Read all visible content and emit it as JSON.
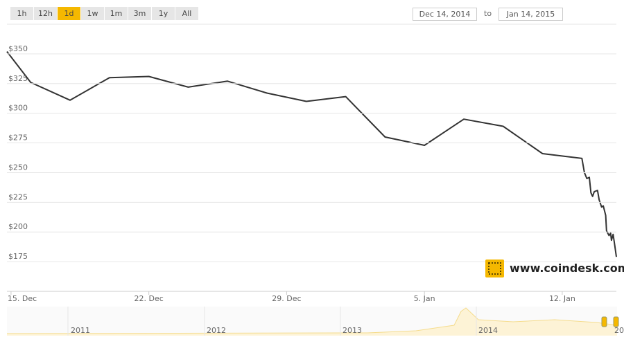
{
  "range_buttons": [
    "1h",
    "12h",
    "1d",
    "1w",
    "1m",
    "3m",
    "1y",
    "All"
  ],
  "selected_range": 2,
  "date_from": "Dec 14, 2014",
  "date_separator": "to",
  "date_to": "Jan 14, 2015",
  "watermark": "www.coindesk.com",
  "navigator": {
    "labels": [
      "2011",
      "2012",
      "2013",
      "2014",
      "20"
    ]
  },
  "chart_data": {
    "type": "line",
    "x": [
      "2014-12-14T19:00",
      "2014-12-16T00:00",
      "2014-12-18T00:00",
      "2014-12-20T00:00",
      "2014-12-22T00:00",
      "2014-12-24T00:00",
      "2014-12-26T00:00",
      "2014-12-28T00:00",
      "2014-12-30T00:00",
      "2015-01-01T00:00",
      "2015-01-03T00:00",
      "2015-01-05T00:00",
      "2015-01-07T00:00",
      "2015-01-09T00:00",
      "2015-01-11T00:00",
      "2015-01-13T00:00",
      "2015-01-13T03:00",
      "2015-01-13T06:00",
      "2015-01-13T09:00",
      "2015-01-13T11:00",
      "2015-01-13T13:00",
      "2015-01-13T15:00",
      "2015-01-13T19:00",
      "2015-01-13T21:00",
      "2015-01-14T00:00",
      "2015-01-14T02:00",
      "2015-01-14T05:00",
      "2015-01-14T06:00",
      "2015-01-14T09:00",
      "2015-01-14T11:00",
      "2015-01-14T12:00",
      "2015-01-14T14:00",
      "2015-01-14T16:00",
      "2015-01-14T18:00"
    ],
    "series": [
      {
        "color": "#333333",
        "values": [
          352,
          326,
          311,
          330,
          331,
          322,
          327,
          317,
          310,
          314,
          280,
          273,
          295,
          289,
          266,
          262,
          250,
          245,
          246,
          233,
          230,
          234,
          235,
          227,
          221,
          222,
          214,
          201,
          197,
          199,
          193,
          198,
          189,
          179
        ]
      }
    ],
    "xlim": [
      "2014-12-14T19:00",
      "2015-01-14T18:00"
    ],
    "xticks": [
      {
        "value": "2014-12-15T00:00",
        "label": "15. Dec"
      },
      {
        "value": "2014-12-22T00:00",
        "label": "22. Dec"
      },
      {
        "value": "2014-12-29T00:00",
        "label": "29. Dec"
      },
      {
        "value": "2015-01-05T00:00",
        "label": "5. Jan"
      },
      {
        "value": "2015-01-12T00:00",
        "label": "12. Jan"
      }
    ],
    "ylim": [
      150,
      375
    ],
    "yticks": [
      {
        "value": 175,
        "label": "$175"
      },
      {
        "value": 200,
        "label": "$200"
      },
      {
        "value": 225,
        "label": "$225"
      },
      {
        "value": 250,
        "label": "$250"
      },
      {
        "value": 275,
        "label": "$275"
      },
      {
        "value": 300,
        "label": "$300"
      },
      {
        "value": 325,
        "label": "$325"
      },
      {
        "value": 350,
        "label": "$350"
      }
    ],
    "grid": true
  }
}
